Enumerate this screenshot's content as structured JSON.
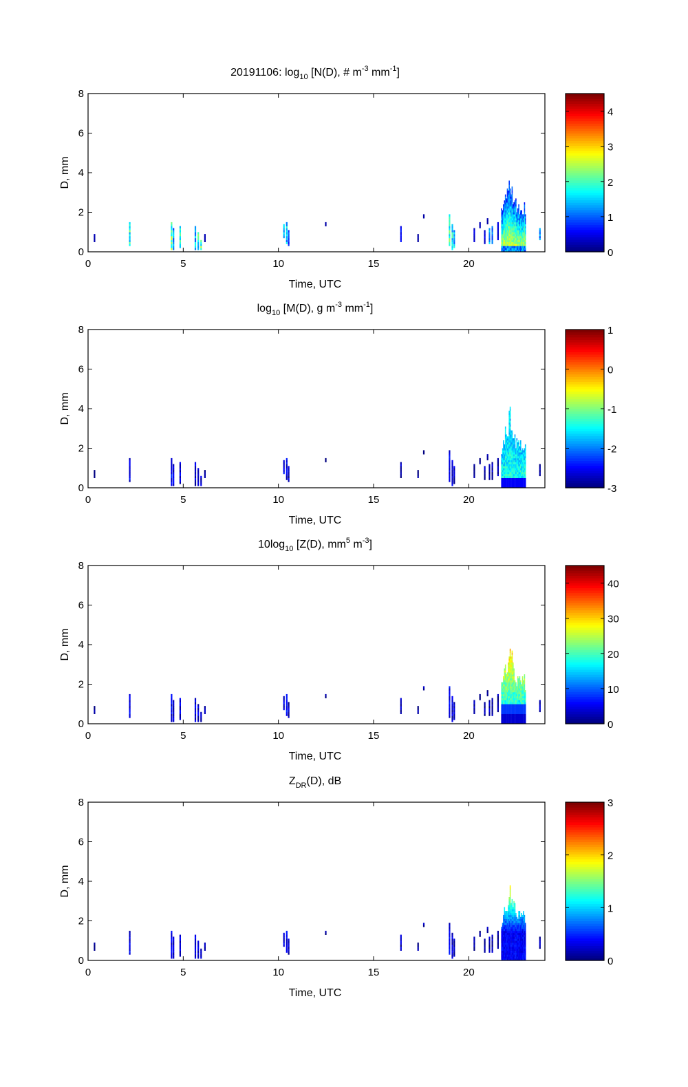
{
  "chart_data": [
    {
      "type": "heatmap",
      "title_parts": [
        "20191106: log",
        "10",
        " [N(D), # m",
        "-3",
        " mm",
        "-1",
        "]"
      ],
      "xlabel": "Time, UTC",
      "ylabel": "D, mm",
      "xlim": [
        0,
        24
      ],
      "ylim": [
        0,
        8
      ],
      "xticks": [
        "0",
        "5",
        "10",
        "15",
        "20"
      ],
      "yticks": [
        "0",
        "2",
        "4",
        "6",
        "8"
      ],
      "clim": [
        0,
        4.5
      ],
      "cticks": [
        "0",
        "1",
        "2",
        "3",
        "4"
      ],
      "colormap": "jet",
      "panel": "nd"
    },
    {
      "type": "heatmap",
      "title_parts": [
        "log",
        "10",
        " [M(D), g m",
        "-3",
        " mm",
        "-1",
        "]"
      ],
      "xlabel": "Time, UTC",
      "ylabel": "D, mm",
      "xlim": [
        0,
        24
      ],
      "ylim": [
        0,
        8
      ],
      "xticks": [
        "0",
        "5",
        "10",
        "15",
        "20"
      ],
      "yticks": [
        "0",
        "2",
        "4",
        "6",
        "8"
      ],
      "clim": [
        -3,
        1
      ],
      "cticks": [
        "-3",
        "-2",
        "-1",
        "0",
        "1"
      ],
      "colormap": "jet",
      "panel": "md"
    },
    {
      "type": "heatmap",
      "title_parts": [
        "10log",
        "10",
        " [Z(D),  mm",
        "5",
        " m",
        "-3",
        "]"
      ],
      "xlabel": "Time, UTC",
      "ylabel": "D, mm",
      "xlim": [
        0,
        24
      ],
      "ylim": [
        0,
        8
      ],
      "xticks": [
        "0",
        "5",
        "10",
        "15",
        "20"
      ],
      "yticks": [
        "0",
        "2",
        "4",
        "6",
        "8"
      ],
      "clim": [
        0,
        45
      ],
      "cticks": [
        "0",
        "10",
        "20",
        "30",
        "40"
      ],
      "colormap": "jet",
      "panel": "zd"
    },
    {
      "type": "heatmap",
      "title_parts": [
        "Z",
        "DR",
        "(D), dB",
        "",
        "",
        "",
        ""
      ],
      "xlabel": "Time, UTC",
      "ylabel": "D, mm",
      "xlim": [
        0,
        24
      ],
      "ylim": [
        0,
        8
      ],
      "xticks": [
        "0",
        "5",
        "10",
        "15",
        "20"
      ],
      "yticks": [
        "0",
        "2",
        "4",
        "6",
        "8"
      ],
      "clim": [
        0,
        3
      ],
      "cticks": [
        "0",
        "1",
        "2",
        "3"
      ],
      "colormap": "jet",
      "panel": "zdr"
    }
  ],
  "events": [
    {
      "t": 0.3,
      "d0": 0.5,
      "d1": 0.8,
      "v": [
        0.05,
        0.02,
        0.02,
        0.02
      ]
    },
    {
      "t": 2.15,
      "d0": 0.3,
      "d1": 1.5,
      "v": [
        0.45,
        0.1,
        0.1,
        0.1
      ]
    },
    {
      "t": 4.35,
      "d0": 0.1,
      "d1": 1.5,
      "v": [
        0.5,
        0.12,
        0.1,
        0.1
      ]
    },
    {
      "t": 4.45,
      "d0": 0.1,
      "d1": 1.1,
      "v": [
        0.3,
        0.08,
        0.08,
        0.08
      ]
    },
    {
      "t": 4.8,
      "d0": 0.2,
      "d1": 1.3,
      "v": [
        0.4,
        0.08,
        0.08,
        0.08
      ]
    },
    {
      "t": 5.6,
      "d0": 0.1,
      "d1": 1.3,
      "v": [
        0.35,
        0.08,
        0.08,
        0.08
      ]
    },
    {
      "t": 5.75,
      "d0": 0.1,
      "d1": 0.9,
      "v": [
        0.45,
        0.08,
        0.08,
        0.08
      ]
    },
    {
      "t": 5.9,
      "d0": 0.1,
      "d1": 0.6,
      "v": [
        0.5,
        0.08,
        0.08,
        0.08
      ]
    },
    {
      "t": 6.1,
      "d0": 0.5,
      "d1": 0.8,
      "v": [
        0.05,
        0.02,
        0.02,
        0.02
      ]
    },
    {
      "t": 10.25,
      "d0": 0.7,
      "d1": 1.4,
      "v": [
        0.3,
        0.1,
        0.1,
        0.1
      ]
    },
    {
      "t": 10.4,
      "d0": 0.4,
      "d1": 1.5,
      "v": [
        0.35,
        0.1,
        0.12,
        0.1
      ]
    },
    {
      "t": 10.5,
      "d0": 0.3,
      "d1": 1.0,
      "v": [
        0.2,
        0.06,
        0.06,
        0.06
      ]
    },
    {
      "t": 12.45,
      "d0": 1.3,
      "d1": 1.5,
      "v": [
        0.05,
        0.02,
        0.02,
        0.02
      ]
    },
    {
      "t": 16.4,
      "d0": 0.5,
      "d1": 1.3,
      "v": [
        0.15,
        0.05,
        0.05,
        0.05
      ]
    },
    {
      "t": 17.3,
      "d0": 0.5,
      "d1": 0.8,
      "v": [
        0.05,
        0.02,
        0.02,
        0.02
      ]
    },
    {
      "t": 17.6,
      "d0": 1.7,
      "d1": 1.9,
      "v": [
        0.05,
        0.02,
        0.02,
        0.02
      ]
    },
    {
      "t": 18.95,
      "d0": 0.3,
      "d1": 1.9,
      "v": [
        0.45,
        0.1,
        0.1,
        0.1
      ]
    },
    {
      "t": 19.1,
      "d0": 0.1,
      "d1": 1.4,
      "v": [
        0.4,
        0.08,
        0.08,
        0.08
      ]
    },
    {
      "t": 19.2,
      "d0": 0.2,
      "d1": 1.0,
      "v": [
        0.35,
        0.06,
        0.06,
        0.06
      ]
    },
    {
      "t": 20.25,
      "d0": 0.5,
      "d1": 1.1,
      "v": [
        0.1,
        0.03,
        0.03,
        0.03
      ]
    },
    {
      "t": 20.55,
      "d0": 1.2,
      "d1": 1.5,
      "v": [
        0.05,
        0.02,
        0.02,
        0.02
      ]
    },
    {
      "t": 20.8,
      "d0": 0.4,
      "d1": 1.0,
      "v": [
        0.1,
        0.03,
        0.03,
        0.03
      ]
    },
    {
      "t": 20.95,
      "d0": 1.4,
      "d1": 1.7,
      "v": [
        0.05,
        0.02,
        0.02,
        0.02
      ]
    },
    {
      "t": 21.05,
      "d0": 0.4,
      "d1": 1.1,
      "v": [
        0.3,
        0.05,
        0.05,
        0.05
      ]
    },
    {
      "t": 21.2,
      "d0": 0.4,
      "d1": 1.3,
      "v": [
        0.25,
        0.04,
        0.04,
        0.04
      ]
    },
    {
      "t": 21.5,
      "d0": 0.6,
      "d1": 1.5,
      "v": [
        0.1,
        0.03,
        0.03,
        0.03
      ]
    },
    {
      "t": 23.7,
      "d0": 0.6,
      "d1": 1.1,
      "v": [
        0.3,
        0.05,
        0.05,
        0.05
      ]
    }
  ],
  "storm": {
    "t0": 21.7,
    "t1": 23.0,
    "dmax": [
      2.1,
      2.6,
      2.9,
      3.3,
      3.9,
      3.6,
      3.0,
      2.8,
      2.5,
      2.6,
      2.4,
      2.3,
      2.5,
      2.2
    ]
  }
}
